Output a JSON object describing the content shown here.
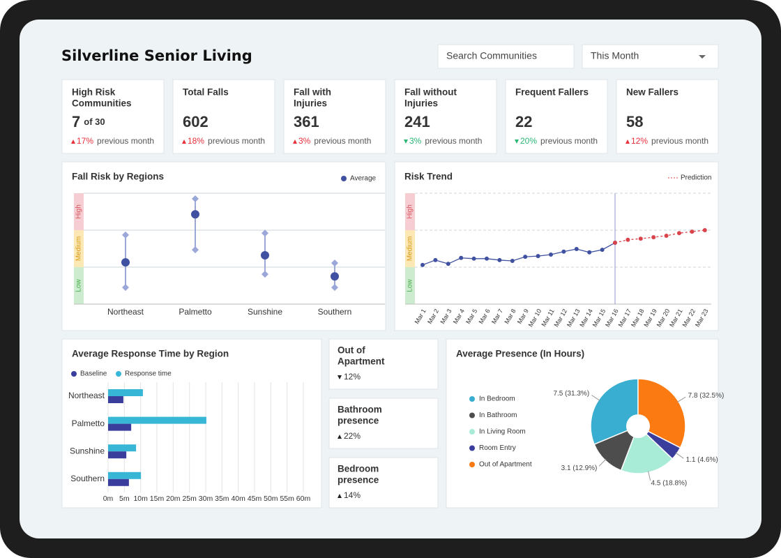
{
  "header": {
    "title": "Silverline Senior Living",
    "search_placeholder": "Search Communities",
    "period": "This Month"
  },
  "kpis": [
    {
      "label_lines": [
        "High Risk",
        "Communities"
      ],
      "value": 7,
      "suffix": "of 30",
      "trend": "up",
      "change": "17%",
      "note": "previous month"
    },
    {
      "label_lines": [
        "Total Falls"
      ],
      "value": 602,
      "trend": "up",
      "change": "18%",
      "note": "previous month"
    },
    {
      "label_lines": [
        "Fall with",
        "Injuries"
      ],
      "value": 361,
      "trend": "up",
      "change": "3%",
      "note": "previous month"
    },
    {
      "label_lines": [
        "Fall without",
        "Injuries"
      ],
      "value": 241,
      "trend": "down",
      "change": "3%",
      "note": "previous month"
    },
    {
      "label_lines": [
        "Frequent Fallers"
      ],
      "value": 22,
      "trend": "down",
      "change": "20%",
      "note": "previous month"
    },
    {
      "label_lines": [
        "New Fallers"
      ],
      "value": 58,
      "trend": "up",
      "change": "12%",
      "note": "previous month"
    }
  ],
  "presence_cards": [
    {
      "title_lines": [
        "Out of",
        "Apartment"
      ],
      "trend": "down",
      "change": "12%"
    },
    {
      "title_lines": [
        "Bathroom",
        "presence"
      ],
      "trend": "up",
      "change": "22%"
    },
    {
      "title_lines": [
        "Bedroom",
        "presence"
      ],
      "trend": "up",
      "change": "14%"
    }
  ],
  "chart_data": [
    {
      "type": "range-dot",
      "title": "Fall Risk by Regions",
      "categories": [
        "Northeast",
        "Palmetto",
        "Sunshine",
        "Southern"
      ],
      "bands": [
        {
          "label": "Low",
          "from": 0,
          "to": 1,
          "color": "#cdeccf"
        },
        {
          "label": "Medium",
          "from": 1,
          "to": 2,
          "color": "#fbe8b4"
        },
        {
          "label": "High",
          "from": 2,
          "to": 3,
          "color": "#f5cdd2"
        }
      ],
      "ylim": [
        0,
        3
      ],
      "series": [
        {
          "name": "Average",
          "color": "#3f51a0",
          "values": [
            1.13,
            2.43,
            1.32,
            0.75
          ]
        }
      ],
      "low": [
        0.45,
        1.47,
        0.81,
        0.45
      ],
      "high": [
        1.87,
        2.85,
        1.92,
        1.11
      ],
      "range_color": "#9ba7d8"
    },
    {
      "type": "line",
      "title": "Risk Trend",
      "categories": [
        "Mar 1",
        "Mar 2",
        "Mar 3",
        "Mar 4",
        "Mar 5",
        "Mar 6",
        "Mar 7",
        "Mar 8",
        "Mar 9",
        "Mar 10",
        "Mar 11",
        "Mar 12",
        "Mar 13",
        "Mar 14",
        "Mar 15",
        "Mar 16",
        "Mar 17",
        "Mar 18",
        "Mar 19",
        "Mar 20",
        "Mar 21",
        "Mar 22",
        "Mar 23"
      ],
      "bands": [
        {
          "label": "Low",
          "from": 0,
          "to": 1,
          "color": "#cdeccf"
        },
        {
          "label": "Medium",
          "from": 1,
          "to": 2,
          "color": "#fbe8b4"
        },
        {
          "label": "High",
          "from": 2,
          "to": 3,
          "color": "#f5cdd2"
        }
      ],
      "ylim": [
        0,
        3
      ],
      "marker_category": "Mar 16",
      "series": [
        {
          "color": "#3f51a0",
          "values": [
            1.06,
            1.19,
            1.09,
            1.25,
            1.23,
            1.23,
            1.19,
            1.17,
            1.28,
            1.3,
            1.34,
            1.42,
            1.49,
            1.4,
            1.47,
            1.66,
            null,
            null,
            null,
            null,
            null,
            null,
            null
          ]
        },
        {
          "name": "Prediction",
          "color": "#d9434b",
          "dashed": true,
          "values": [
            null,
            null,
            null,
            null,
            null,
            null,
            null,
            null,
            null,
            null,
            null,
            null,
            null,
            null,
            null,
            1.66,
            1.74,
            1.77,
            1.81,
            1.85,
            1.92,
            1.96,
            2.0
          ]
        }
      ]
    },
    {
      "type": "hbar",
      "title": "Average Response Time by Region",
      "categories": [
        "Northeast",
        "Palmetto",
        "Sunshine",
        "Southern"
      ],
      "series": [
        {
          "name": "Baseline",
          "color": "#3a3d9c",
          "values": [
            4.7,
            7.1,
            5.6,
            6.4
          ]
        },
        {
          "name": "Response time",
          "color": "#38b6d6",
          "values": [
            10.7,
            30.2,
            8.6,
            10.1
          ]
        }
      ],
      "xlim": [
        0,
        60
      ],
      "xticks": [
        {
          "value": 0,
          "label": "0m"
        },
        {
          "value": 5,
          "label": "5m"
        },
        {
          "value": 10,
          "label": "10m"
        },
        {
          "value": 15,
          "label": "15m"
        },
        {
          "value": 20,
          "label": "20m"
        },
        {
          "value": 25,
          "label": "25m"
        },
        {
          "value": 30,
          "label": "30m"
        },
        {
          "value": 35,
          "label": "35m"
        },
        {
          "value": 40,
          "label": "40m"
        },
        {
          "value": 45,
          "label": "45m"
        },
        {
          "value": 50,
          "label": "50m"
        },
        {
          "value": 55,
          "label": "55m"
        },
        {
          "value": 60,
          "label": "60m"
        }
      ],
      "grid": true
    },
    {
      "type": "pie",
      "title": "Average Presence (In Hours)",
      "categories": [
        "In Bedroom",
        "In Bathroom",
        "In Living Room",
        "Room Entry",
        "Out of Apartment"
      ],
      "values": [
        7.5,
        3.1,
        4.5,
        1.1,
        7.8
      ],
      "value_labels": [
        "7.5 (31.3%)",
        "3.1 (12.9%)",
        "4.5 (18.8%)",
        "1.1 (4.6%)",
        "7.8 (32.5%)"
      ],
      "colors": [
        "#3aaed0",
        "#4d4d4d",
        "#a8ecd8",
        "#3a3d9c",
        "#fb7a12"
      ]
    }
  ]
}
